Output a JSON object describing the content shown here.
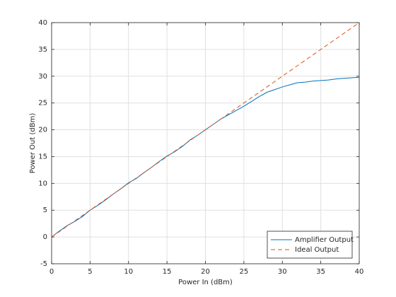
{
  "chart_data": {
    "type": "line",
    "xlabel": "Power In (dBm)",
    "ylabel": "Power Out (dBm)",
    "x": [
      0,
      1,
      2,
      3,
      4,
      5,
      6,
      7,
      8,
      9,
      10,
      11,
      12,
      13,
      14,
      15,
      16,
      17,
      18,
      19,
      20,
      21,
      22,
      23,
      24,
      25,
      26,
      27,
      28,
      29,
      30,
      31,
      32,
      33,
      34,
      35,
      36,
      37,
      38,
      39,
      40
    ],
    "series": [
      {
        "name": "Amplifier Output",
        "color": "#0072bd",
        "dash": false,
        "values": [
          0,
          1.1,
          2.1,
          2.9,
          3.8,
          5.0,
          5.9,
          6.9,
          8.0,
          9.0,
          10.1,
          10.9,
          12.0,
          13.0,
          14.1,
          15.1,
          15.9,
          16.9,
          18.1,
          19.0,
          20.0,
          21.0,
          22.0,
          22.8,
          23.6,
          24.4,
          25.3,
          26.2,
          27.0,
          27.5,
          28.0,
          28.4,
          28.8,
          28.9,
          29.1,
          29.2,
          29.3,
          29.5,
          29.6,
          29.7,
          29.8
        ]
      },
      {
        "name": "Ideal Output",
        "color": "#d95319",
        "dash": true,
        "values": [
          0,
          1,
          2,
          3,
          4,
          5,
          6,
          7,
          8,
          9,
          10,
          11,
          12,
          13,
          14,
          15,
          16,
          17,
          18,
          19,
          20,
          21,
          22,
          23,
          24,
          25,
          26,
          27,
          28,
          29,
          30,
          31,
          32,
          33,
          34,
          35,
          36,
          37,
          38,
          39,
          40
        ]
      }
    ],
    "xlim": [
      0,
      40
    ],
    "xticks": [
      0,
      5,
      10,
      15,
      20,
      25,
      30,
      35,
      40
    ],
    "ylim": [
      -5,
      40
    ],
    "yticks": [
      -5,
      0,
      5,
      10,
      15,
      20,
      25,
      30,
      35,
      40
    ],
    "grid": true,
    "legend": "southeast"
  }
}
